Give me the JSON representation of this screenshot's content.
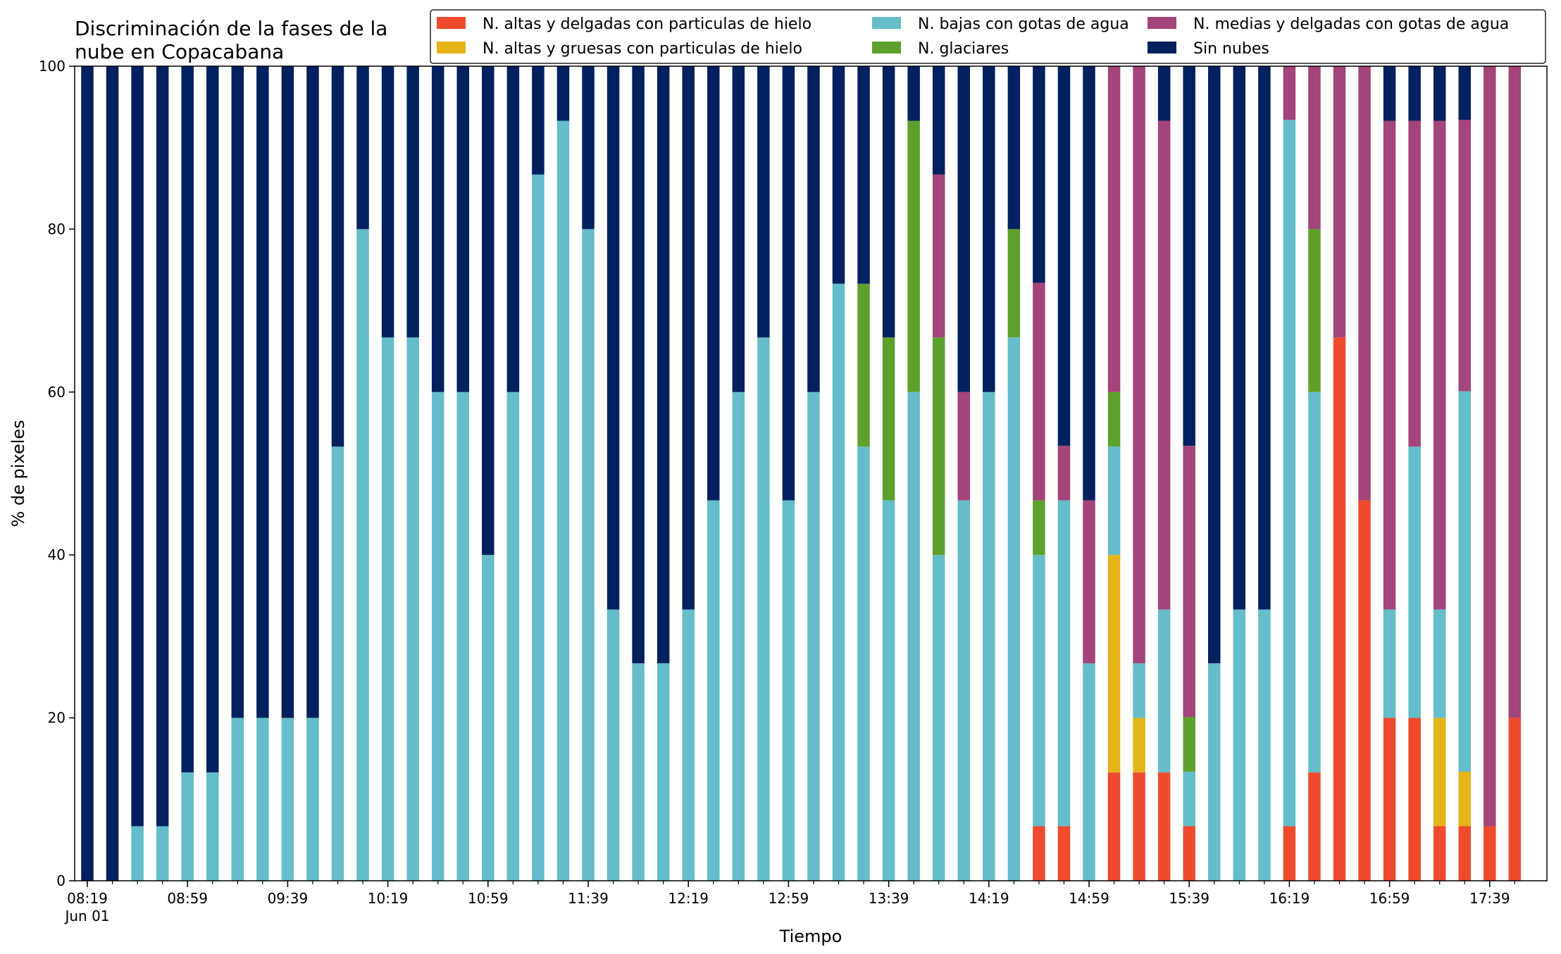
{
  "chart_data": {
    "type": "bar",
    "stacked": true,
    "title_lines": [
      "Discriminación de la fases de la",
      "nube en Copacabana"
    ],
    "xlabel": "Tiempo",
    "ylabel": "% de pixeles",
    "ylim": [
      0,
      100
    ],
    "yticks": [
      0,
      20,
      40,
      60,
      80,
      100
    ],
    "grid": false,
    "legend_position": "top-right",
    "x": [
      "08:19",
      "08:29",
      "08:39",
      "08:49",
      "08:59",
      "09:09",
      "09:19",
      "09:29",
      "09:39",
      "09:49",
      "09:59",
      "10:09",
      "10:19",
      "10:29",
      "10:39",
      "10:49",
      "10:59",
      "11:09",
      "11:19",
      "11:29",
      "11:39",
      "11:49",
      "11:59",
      "12:09",
      "12:19",
      "12:29",
      "12:39",
      "12:49",
      "12:59",
      "13:09",
      "13:19",
      "13:29",
      "13:39",
      "13:49",
      "13:59",
      "14:09",
      "14:19",
      "14:29",
      "14:39",
      "14:49",
      "14:59",
      "15:09",
      "15:19",
      "15:29",
      "15:39",
      "15:49",
      "15:59",
      "16:09",
      "16:19",
      "16:29",
      "16:39",
      "16:49",
      "16:59",
      "17:09",
      "17:19",
      "17:29",
      "17:39",
      "17:49"
    ],
    "x_tick_labels": [
      {
        "label": "08:19",
        "sublabel": "Jun 01",
        "index": 0
      },
      {
        "label": "08:59",
        "index": 4
      },
      {
        "label": "09:39",
        "index": 8
      },
      {
        "label": "10:19",
        "index": 12
      },
      {
        "label": "10:59",
        "index": 16
      },
      {
        "label": "11:39",
        "index": 20
      },
      {
        "label": "12:19",
        "index": 24
      },
      {
        "label": "12:59",
        "index": 28
      },
      {
        "label": "13:39",
        "index": 32
      },
      {
        "label": "14:19",
        "index": 36
      },
      {
        "label": "14:59",
        "index": 40
      },
      {
        "label": "15:39",
        "index": 44
      },
      {
        "label": "16:19",
        "index": 48
      },
      {
        "label": "16:59",
        "index": 52
      },
      {
        "label": "17:39",
        "index": 56
      }
    ],
    "series": [
      {
        "name": "N. altas y delgadas con particulas de hielo",
        "color": "#ee4a2e",
        "values": [
          0,
          0,
          0,
          0,
          0,
          0,
          0,
          0,
          0,
          0,
          0,
          0,
          0,
          0,
          0,
          0,
          0,
          0,
          0,
          0,
          0,
          0,
          0,
          0,
          0,
          0,
          0,
          0,
          0,
          0,
          0,
          0,
          0,
          0,
          0,
          0,
          0,
          0,
          6.7,
          6.7,
          0,
          13.3,
          13.3,
          13.3,
          6.7,
          0,
          0,
          0,
          6.7,
          13.3,
          66.7,
          46.7,
          20,
          20,
          6.7,
          6.7,
          6.7,
          20
        ]
      },
      {
        "name": "N. altas y gruesas con particulas de hielo",
        "color": "#e4b418",
        "values": [
          0,
          0,
          0,
          0,
          0,
          0,
          0,
          0,
          0,
          0,
          0,
          0,
          0,
          0,
          0,
          0,
          0,
          0,
          0,
          0,
          0,
          0,
          0,
          0,
          0,
          0,
          0,
          0,
          0,
          0,
          0,
          0,
          0,
          0,
          0,
          0,
          0,
          0,
          0,
          0,
          0,
          26.7,
          6.7,
          0,
          0,
          0,
          0,
          0,
          0,
          0,
          0,
          0,
          0,
          0,
          13.3,
          6.7,
          0,
          0
        ]
      },
      {
        "name": "N. bajas con gotas de agua",
        "color": "#64bdc8",
        "values": [
          0,
          0,
          6.7,
          6.7,
          13.3,
          13.3,
          20,
          20,
          20,
          20,
          53.3,
          80,
          66.7,
          66.7,
          60,
          60,
          40,
          60,
          86.7,
          93.3,
          80,
          33.3,
          26.7,
          26.7,
          33.3,
          46.7,
          60,
          66.7,
          46.7,
          60,
          73.3,
          53.3,
          46.7,
          60,
          40,
          46.7,
          60,
          66.7,
          33.3,
          40,
          26.7,
          13.3,
          6.7,
          20,
          6.7,
          26.7,
          33.3,
          33.3,
          86.7,
          46.7,
          0,
          0,
          13.3,
          33.3,
          13.3,
          46.7,
          0,
          0
        ]
      },
      {
        "name": "N. glaciares",
        "color": "#5da12c",
        "values": [
          0,
          0,
          0,
          0,
          0,
          0,
          0,
          0,
          0,
          0,
          0,
          0,
          0,
          0,
          0,
          0,
          0,
          0,
          0,
          0,
          0,
          0,
          0,
          0,
          0,
          0,
          0,
          0,
          0,
          0,
          0,
          20,
          20,
          33.3,
          26.7,
          0,
          0,
          13.3,
          6.7,
          0,
          0,
          6.7,
          0,
          0,
          6.7,
          0,
          0,
          0,
          0,
          20,
          0,
          0,
          0,
          0,
          0,
          0,
          0,
          0
        ]
      },
      {
        "name": "N. medias y delgadas con gotas de agua",
        "color": "#a3447a",
        "values": [
          0,
          0,
          0,
          0,
          0,
          0,
          0,
          0,
          0,
          0,
          0,
          0,
          0,
          0,
          0,
          0,
          0,
          0,
          0,
          0,
          0,
          0,
          0,
          0,
          0,
          0,
          0,
          0,
          0,
          0,
          0,
          0,
          0,
          0,
          20,
          13.3,
          0,
          0,
          26.7,
          6.7,
          20,
          40,
          73.3,
          60,
          33.3,
          0,
          0,
          0,
          6.7,
          20,
          33.3,
          53.3,
          60,
          40,
          60,
          33.3,
          93.3,
          80
        ]
      },
      {
        "name": "Sin nubes",
        "color": "#03205f",
        "values": [
          100,
          100,
          93.3,
          93.3,
          86.7,
          86.7,
          80,
          80,
          80,
          80,
          46.7,
          20,
          33.3,
          33.3,
          40,
          40,
          60,
          40,
          13.3,
          6.7,
          20,
          66.7,
          73.3,
          73.3,
          66.7,
          53.3,
          40,
          33.3,
          53.3,
          40,
          26.7,
          26.7,
          33.3,
          6.7,
          13.3,
          40,
          40,
          20,
          26.7,
          46.7,
          53.3,
          0,
          0,
          6.7,
          46.7,
          73.3,
          66.7,
          66.7,
          0,
          0,
          0,
          0,
          6.7,
          6.7,
          6.7,
          6.7,
          0,
          0
        ]
      }
    ]
  }
}
